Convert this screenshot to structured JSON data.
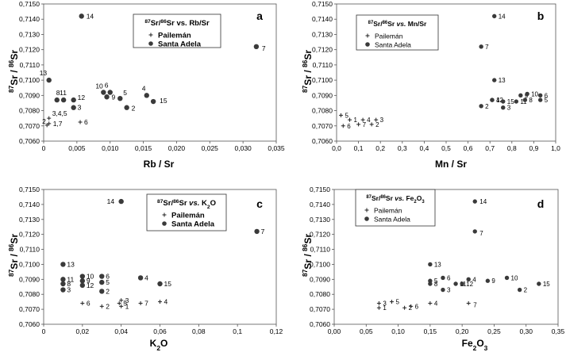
{
  "chart_data": [
    {
      "id": "a",
      "type": "scatter",
      "panel_label": "a",
      "title_parts": [
        [
          "87",
          "sup"
        ],
        [
          "Sr/",
          ""
        ],
        [
          "86",
          "sup"
        ],
        [
          "Sr vs. Rb/Sr",
          ""
        ]
      ],
      "xlabel_parts": [
        [
          "Rb / Sr",
          ""
        ]
      ],
      "ylabel_parts": [
        [
          "87",
          "sup"
        ],
        [
          "Sr / ",
          ""
        ],
        [
          "86",
          "sup"
        ],
        [
          "Sr",
          ""
        ]
      ],
      "xlim": [
        0,
        0.035
      ],
      "ylim": [
        0.706,
        0.715
      ],
      "xticks": [
        "0",
        "0,005",
        "0,010",
        "0,015",
        "0,020",
        "0,025",
        "0,030",
        "0,035"
      ],
      "yticks": [
        "0,7060",
        "0,7070",
        "0,7080",
        "0,7090",
        "0,7100",
        "0,7110",
        "0,7120",
        "0,7130",
        "0,7140",
        "0,7150"
      ],
      "legend_position": "top-center",
      "series": [
        {
          "name": "Pailemán",
          "marker": "plus",
          "points": [
            {
              "x": 0.0008,
              "y": 0.70715,
              "label": "1,7"
            },
            {
              "x": 0.0005,
              "y": 0.70705,
              "label": "2"
            },
            {
              "x": 0.0008,
              "y": 0.7075,
              "label": "3,4,5"
            },
            {
              "x": 0.0055,
              "y": 0.70725,
              "label": "6"
            }
          ]
        },
        {
          "name": "Santa Adela",
          "marker": "dot",
          "points": [
            {
              "x": 0.0008,
              "y": 0.71,
              "label": "13"
            },
            {
              "x": 0.002,
              "y": 0.7087,
              "label": "8"
            },
            {
              "x": 0.003,
              "y": 0.7087,
              "label": "11"
            },
            {
              "x": 0.0045,
              "y": 0.7087,
              "label": "12"
            },
            {
              "x": 0.0045,
              "y": 0.7082,
              "label": "3"
            },
            {
              "x": 0.0057,
              "y": 0.7142,
              "label": "14"
            },
            {
              "x": 0.009,
              "y": 0.7092,
              "label": "10"
            },
            {
              "x": 0.0095,
              "y": 0.7089,
              "label": "9"
            },
            {
              "x": 0.01,
              "y": 0.7092,
              "label": "6"
            },
            {
              "x": 0.0115,
              "y": 0.7088,
              "label": "5"
            },
            {
              "x": 0.0125,
              "y": 0.7082,
              "label": "2"
            },
            {
              "x": 0.0155,
              "y": 0.709,
              "label": "4"
            },
            {
              "x": 0.0165,
              "y": 0.7086,
              "label": "15"
            },
            {
              "x": 0.032,
              "y": 0.7122,
              "label": "7"
            }
          ]
        }
      ]
    },
    {
      "id": "b",
      "type": "scatter",
      "panel_label": "b",
      "title_parts": [
        [
          "87",
          "sup"
        ],
        [
          "Sr/",
          ""
        ],
        [
          "86",
          "sup"
        ],
        [
          "Sr ",
          ""
        ],
        [
          "vs.",
          "i"
        ],
        [
          " Mn/Sr",
          ""
        ]
      ],
      "xlabel_parts": [
        [
          "Mn / Sr",
          ""
        ]
      ],
      "ylabel_parts": [
        [
          "87",
          "sup"
        ],
        [
          "Sr / ",
          ""
        ],
        [
          "86",
          "sup"
        ],
        [
          "Sr",
          ""
        ]
      ],
      "xlim": [
        0,
        1.0
      ],
      "ylim": [
        0.706,
        0.715
      ],
      "xticks": [
        "0,0",
        "0,1",
        "0,2",
        "0,3",
        "0,4",
        "0,5",
        "0,6",
        "0,7",
        "0,8",
        "0,9",
        "1,0"
      ],
      "yticks": [
        "0,7060",
        "0,7070",
        "0,7080",
        "0,7090",
        "0,7100",
        "0,7110",
        "0,7120",
        "0,7130",
        "0,7140",
        "0,7150"
      ],
      "legend_position": "top-center",
      "series": [
        {
          "name": "Pailemán",
          "marker": "plus",
          "points": [
            {
              "x": 0.02,
              "y": 0.7077,
              "label": "5"
            },
            {
              "x": 0.06,
              "y": 0.7074,
              "label": "1"
            },
            {
              "x": 0.03,
              "y": 0.707,
              "label": "6"
            },
            {
              "x": 0.12,
              "y": 0.7074,
              "label": "4"
            },
            {
              "x": 0.1,
              "y": 0.7071,
              "label": "7"
            },
            {
              "x": 0.18,
              "y": 0.7074,
              "label": "3"
            },
            {
              "x": 0.16,
              "y": 0.7071,
              "label": "2"
            }
          ]
        },
        {
          "name": "Santa Adela",
          "marker": "dot",
          "points": [
            {
              "x": 0.72,
              "y": 0.7142,
              "label": "14"
            },
            {
              "x": 0.66,
              "y": 0.7122,
              "label": "7"
            },
            {
              "x": 0.72,
              "y": 0.71,
              "label": "13"
            },
            {
              "x": 0.66,
              "y": 0.7083,
              "label": "2"
            },
            {
              "x": 0.71,
              "y": 0.7087,
              "label": "4"
            },
            {
              "x": 0.71,
              "y": 0.7087,
              "label": "12"
            },
            {
              "x": 0.76,
              "y": 0.7086,
              "label": "15"
            },
            {
              "x": 0.76,
              "y": 0.7082,
              "label": "3"
            },
            {
              "x": 0.82,
              "y": 0.7086,
              "label": "11"
            },
            {
              "x": 0.84,
              "y": 0.709,
              "label": "9"
            },
            {
              "x": 0.86,
              "y": 0.7087,
              "label": "8"
            },
            {
              "x": 0.87,
              "y": 0.7091,
              "label": "10"
            },
            {
              "x": 0.93,
              "y": 0.709,
              "label": "6"
            },
            {
              "x": 0.93,
              "y": 0.7087,
              "label": "5"
            }
          ]
        }
      ]
    },
    {
      "id": "c",
      "type": "scatter",
      "panel_label": "c",
      "title_parts": [
        [
          "87",
          "sup"
        ],
        [
          "Sr/",
          ""
        ],
        [
          "86",
          "sup"
        ],
        [
          "Sr ",
          ""
        ],
        [
          "vs.",
          "i"
        ],
        [
          " K",
          ""
        ],
        [
          "2",
          "sub"
        ],
        [
          "O",
          ""
        ]
      ],
      "xlabel_parts": [
        [
          "K",
          ""
        ],
        [
          "2",
          "sub"
        ],
        [
          "O",
          ""
        ]
      ],
      "ylabel_parts": [
        [
          "87",
          "sup"
        ],
        [
          "Sr / ",
          ""
        ],
        [
          "86",
          "sup"
        ],
        [
          "Sr",
          ""
        ]
      ],
      "xlim": [
        0,
        0.12
      ],
      "ylim": [
        0.706,
        0.715
      ],
      "xticks": [
        "0",
        "0,02",
        "0,04",
        "0,06",
        "0,08",
        "0,1",
        "0,12"
      ],
      "yticks": [
        "0,7060",
        "0,7070",
        "0,7080",
        "0,7090",
        "0,7100",
        "0,7110",
        "0,7120",
        "0,7130",
        "0,7140",
        "0,7150"
      ],
      "legend_position": "top-center",
      "series": [
        {
          "name": "Pailemán",
          "marker": "plus",
          "points": [
            {
              "x": 0.02,
              "y": 0.7074,
              "label": "6"
            },
            {
              "x": 0.03,
              "y": 0.7072,
              "label": "2"
            },
            {
              "x": 0.039,
              "y": 0.7074,
              "label": "5"
            },
            {
              "x": 0.04,
              "y": 0.7076,
              "label": "3"
            },
            {
              "x": 0.04,
              "y": 0.7072,
              "label": "1"
            },
            {
              "x": 0.05,
              "y": 0.7074,
              "label": "7"
            },
            {
              "x": 0.06,
              "y": 0.7075,
              "label": "4"
            }
          ]
        },
        {
          "name": "Santa Adela",
          "marker": "dot",
          "points": [
            {
              "x": 0.01,
              "y": 0.71,
              "label": "13"
            },
            {
              "x": 0.01,
              "y": 0.709,
              "label": "11"
            },
            {
              "x": 0.01,
              "y": 0.7087,
              "label": "8"
            },
            {
              "x": 0.01,
              "y": 0.7083,
              "label": "3"
            },
            {
              "x": 0.02,
              "y": 0.7092,
              "label": "10"
            },
            {
              "x": 0.02,
              "y": 0.7089,
              "label": "9"
            },
            {
              "x": 0.02,
              "y": 0.7086,
              "label": "12"
            },
            {
              "x": 0.03,
              "y": 0.7092,
              "label": "6"
            },
            {
              "x": 0.03,
              "y": 0.7088,
              "label": "5"
            },
            {
              "x": 0.03,
              "y": 0.7082,
              "label": "2"
            },
            {
              "x": 0.04,
              "y": 0.7142,
              "label": "14"
            },
            {
              "x": 0.05,
              "y": 0.7091,
              "label": "4"
            },
            {
              "x": 0.06,
              "y": 0.7087,
              "label": "15"
            },
            {
              "x": 0.11,
              "y": 0.7122,
              "label": "7"
            }
          ]
        }
      ]
    },
    {
      "id": "d",
      "type": "scatter",
      "panel_label": "d",
      "title_parts": [
        [
          "87",
          "sup"
        ],
        [
          "Sr/",
          ""
        ],
        [
          "86",
          "sup"
        ],
        [
          "Sr ",
          ""
        ],
        [
          "vs.",
          "i"
        ],
        [
          " Fe",
          ""
        ],
        [
          "2",
          "sub"
        ],
        [
          "O",
          ""
        ],
        [
          "3",
          "sub"
        ]
      ],
      "xlabel_parts": [
        [
          "Fe",
          ""
        ],
        [
          "2",
          "sub"
        ],
        [
          "O",
          ""
        ],
        [
          "3",
          "sub"
        ]
      ],
      "ylabel_parts": [
        [
          "87",
          "sup"
        ],
        [
          "Sr / ",
          ""
        ],
        [
          "86",
          "sup"
        ],
        [
          "Sr",
          ""
        ]
      ],
      "xlim": [
        0,
        0.35
      ],
      "ylim": [
        0.706,
        0.715
      ],
      "xticks": [
        "0,00",
        "0,05",
        "0,10",
        "0,15",
        "0,20",
        "0,25",
        "0,30",
        "0,35"
      ],
      "yticks": [
        "0,7060",
        "0,7070",
        "0,7080",
        "0,7090",
        "0,7100",
        "0,7110",
        "0,7120",
        "0,7130",
        "0,7140",
        "0,7150"
      ],
      "legend_position": "top-left",
      "series": [
        {
          "name": "Pailemán",
          "marker": "plus",
          "points": [
            {
              "x": 0.07,
              "y": 0.7074,
              "label": "3"
            },
            {
              "x": 0.07,
              "y": 0.7071,
              "label": "1"
            },
            {
              "x": 0.09,
              "y": 0.7075,
              "label": "5"
            },
            {
              "x": 0.11,
              "y": 0.7071,
              "label": "2"
            },
            {
              "x": 0.12,
              "y": 0.7072,
              "label": "6"
            },
            {
              "x": 0.15,
              "y": 0.7074,
              "label": "4"
            },
            {
              "x": 0.21,
              "y": 0.7074,
              "label": "7"
            }
          ]
        },
        {
          "name": "Santa Adela",
          "marker": "dot",
          "points": [
            {
              "x": 0.15,
              "y": 0.71,
              "label": "13"
            },
            {
              "x": 0.15,
              "y": 0.7089,
              "label": "5"
            },
            {
              "x": 0.15,
              "y": 0.7087,
              "label": "8"
            },
            {
              "x": 0.17,
              "y": 0.7091,
              "label": "6"
            },
            {
              "x": 0.17,
              "y": 0.7083,
              "label": "3"
            },
            {
              "x": 0.19,
              "y": 0.7087,
              "label": "11"
            },
            {
              "x": 0.2,
              "y": 0.7087,
              "label": "12"
            },
            {
              "x": 0.21,
              "y": 0.709,
              "label": "4"
            },
            {
              "x": 0.22,
              "y": 0.7142,
              "label": "14"
            },
            {
              "x": 0.22,
              "y": 0.7122,
              "label": "7"
            },
            {
              "x": 0.24,
              "y": 0.7089,
              "label": "9"
            },
            {
              "x": 0.27,
              "y": 0.7091,
              "label": "10"
            },
            {
              "x": 0.29,
              "y": 0.7083,
              "label": "2"
            },
            {
              "x": 0.32,
              "y": 0.7087,
              "label": "15"
            }
          ]
        }
      ]
    }
  ]
}
